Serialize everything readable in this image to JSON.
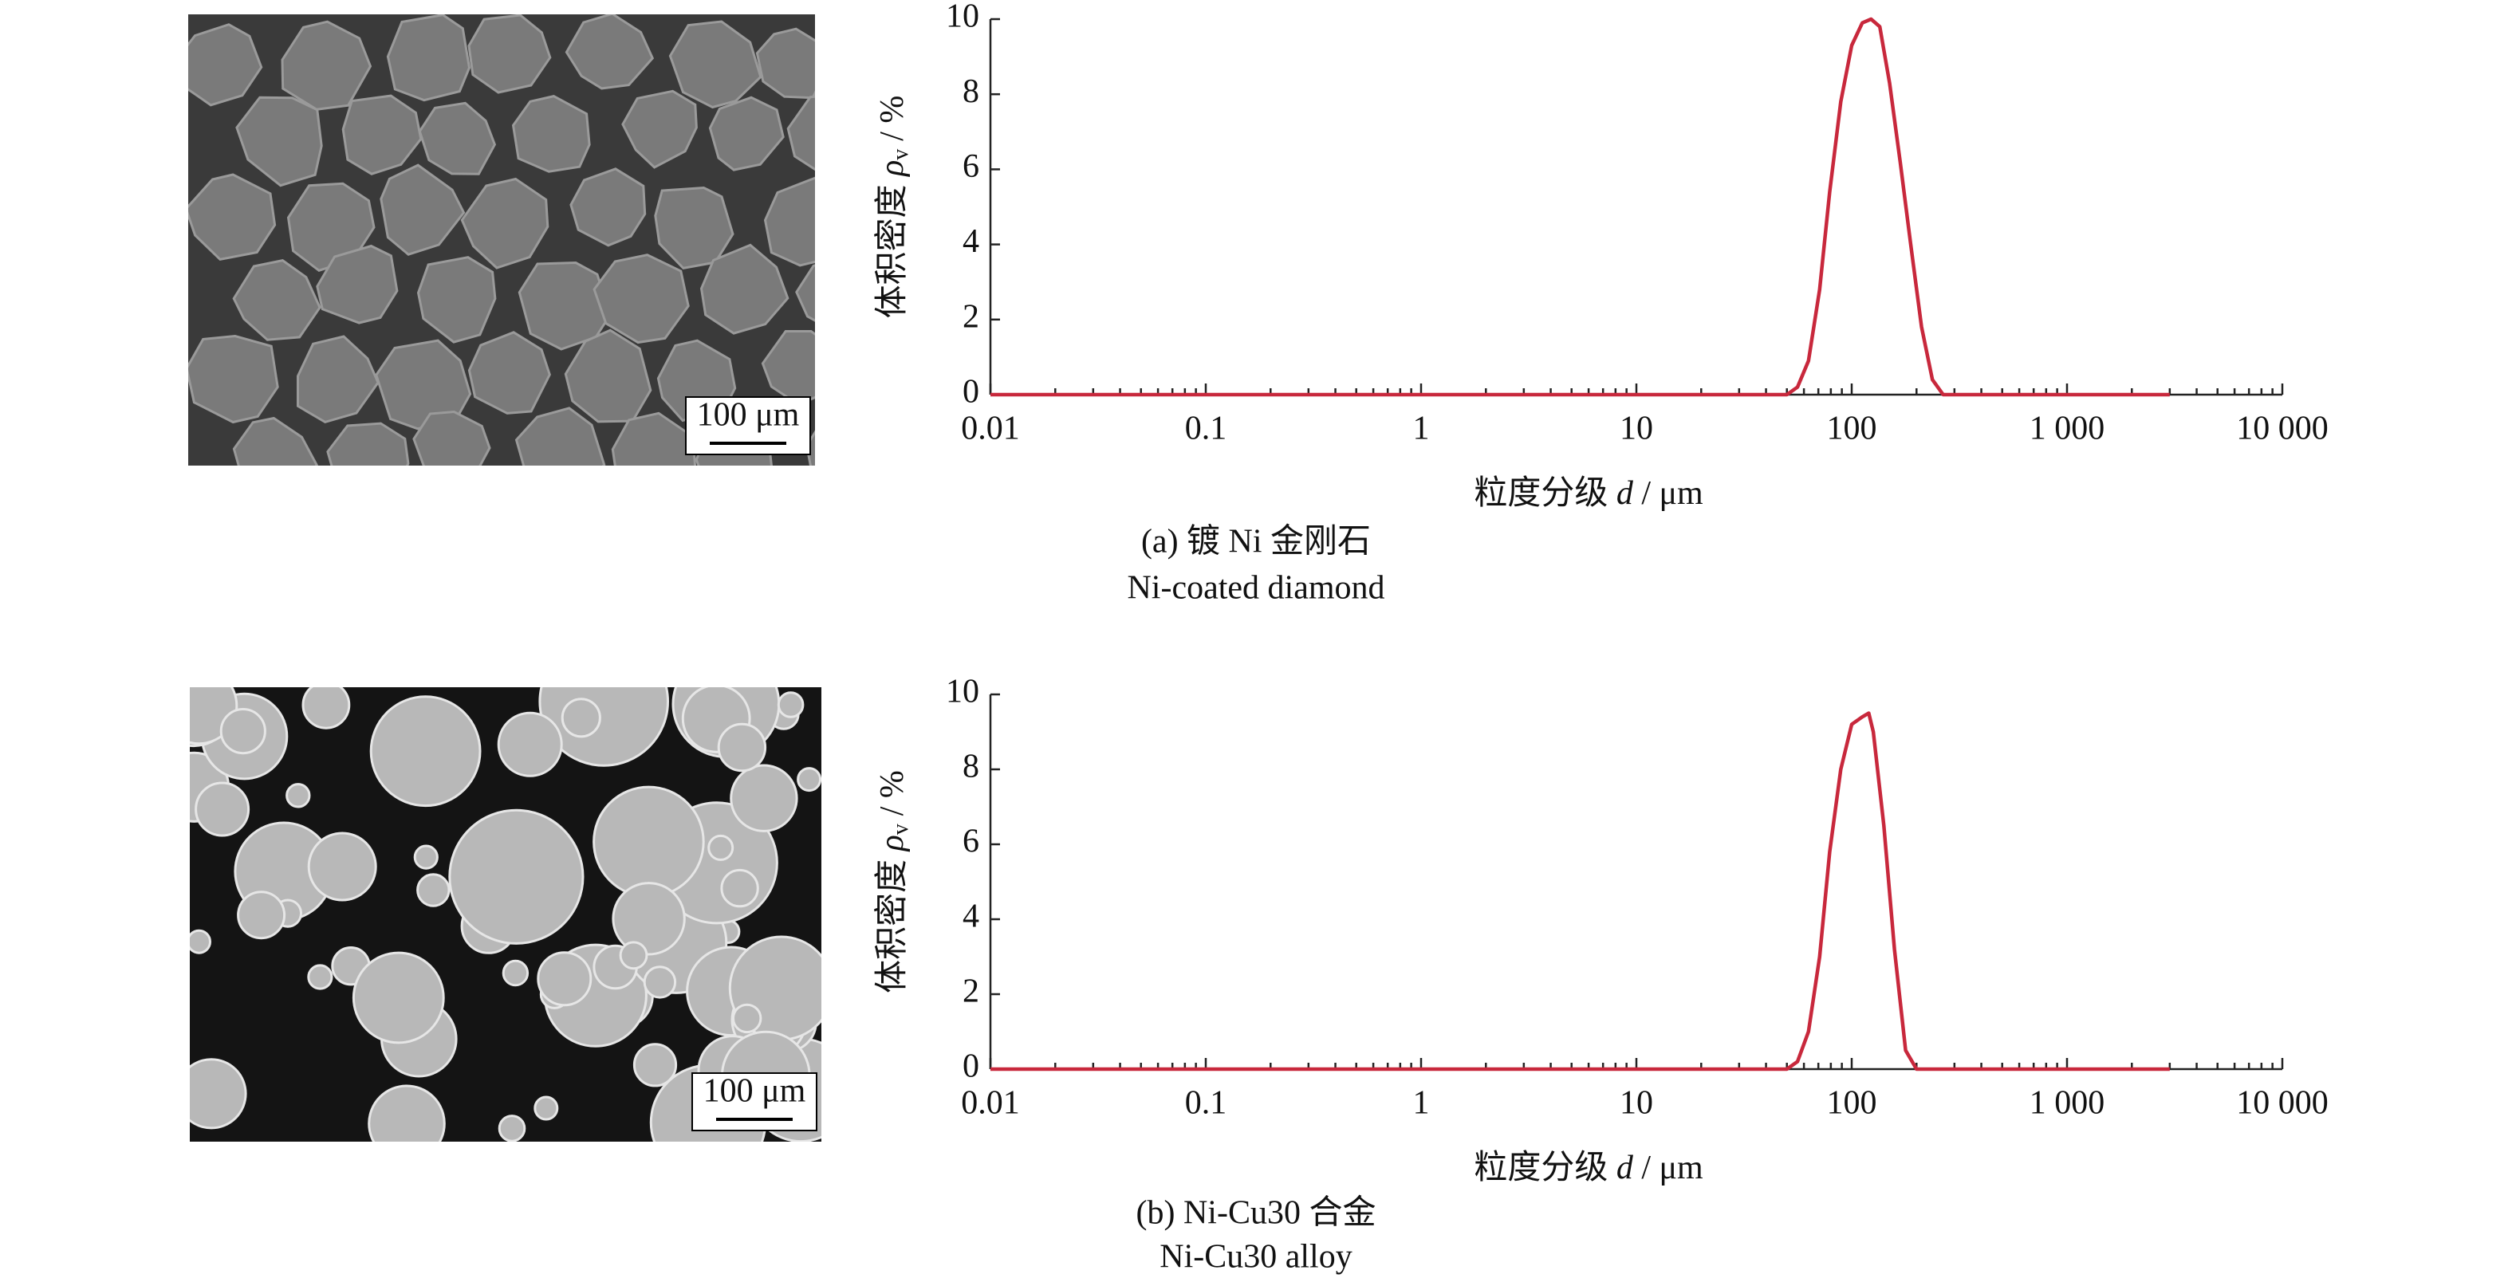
{
  "chart_data": [
    {
      "type": "line",
      "xlog": true,
      "x": [
        0.01,
        50,
        56,
        63,
        71,
        79,
        89,
        100,
        112,
        123,
        135,
        150,
        168,
        188,
        211,
        237,
        266,
        3000
      ],
      "series": [
        {
          "name": "Ni-coated diamond",
          "color": "#c8283c",
          "values": [
            0,
            0,
            0.2,
            0.9,
            2.8,
            5.4,
            7.8,
            9.3,
            9.9,
            10,
            9.8,
            8.3,
            6.2,
            4.0,
            1.8,
            0.4,
            0,
            0
          ]
        }
      ],
      "xlim": [
        0.01,
        10000
      ],
      "ylim": [
        0,
        10
      ],
      "xticks": [
        0.01,
        0.1,
        1,
        10,
        100,
        {
          "value": 1000,
          "label": "1 000"
        },
        {
          "value": 10000,
          "label": "10 000"
        }
      ],
      "yticks": [
        0,
        2,
        4,
        6,
        8,
        10
      ],
      "minor_ticks": true,
      "y_label": [
        "体积密度",
        "ρ",
        "v",
        "/ %"
      ],
      "x_label": [
        "粒度分级",
        "d",
        "/ μm"
      ],
      "caption": [
        "(a) 镀 Ni 金刚石",
        "Ni-coated diamond"
      ],
      "image_scale_label": "100 μm"
    },
    {
      "type": "line",
      "xlog": true,
      "x": [
        0.01,
        50,
        56,
        63,
        71,
        79,
        89,
        100,
        112,
        120,
        126,
        141,
        158,
        178,
        200,
        3000
      ],
      "series": [
        {
          "name": "Ni-Cu30 alloy",
          "color": "#c8283c",
          "values": [
            0,
            0,
            0.2,
            1.0,
            3.0,
            5.8,
            8.0,
            9.2,
            9.4,
            9.5,
            9.0,
            6.5,
            3.2,
            0.5,
            0,
            0
          ]
        }
      ],
      "xlim": [
        0.01,
        10000
      ],
      "ylim": [
        0,
        10
      ],
      "xticks": [
        0.01,
        0.1,
        1,
        10,
        100,
        {
          "value": 1000,
          "label": "1 000"
        },
        {
          "value": 10000,
          "label": "10 000"
        }
      ],
      "yticks": [
        0,
        2,
        4,
        6,
        8,
        10
      ],
      "minor_ticks": true,
      "y_label": [
        "体积密度",
        "ρ",
        "v",
        "/ %"
      ],
      "x_label": [
        "粒度分级",
        "d",
        "/ μm"
      ],
      "caption": [
        "(b) Ni-Cu30 合金",
        "Ni-Cu30 alloy"
      ],
      "image_scale_label": "100 μm"
    }
  ]
}
